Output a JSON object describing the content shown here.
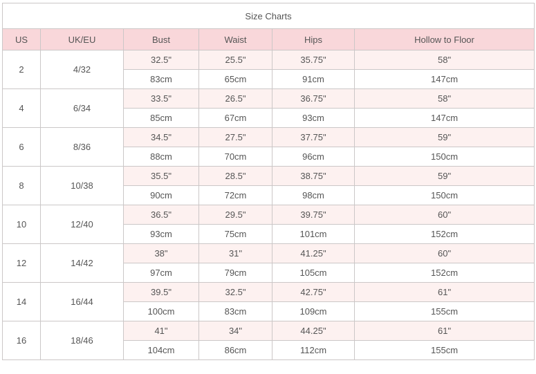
{
  "colors": {
    "header_bg": "#f9d7da",
    "alt_row_bg": "#fdf1f0",
    "border": "#cbc7c7",
    "text": "#555555",
    "header_text": "#4a4a4a",
    "title_text": "#141414"
  },
  "chart_data": {
    "type": "table",
    "title": "Size Charts",
    "columns": [
      "US",
      "UK/EU",
      "Bust",
      "Waist",
      "Hips",
      "Hollow to Floor"
    ],
    "sizes": [
      {
        "us": "2",
        "uk_eu": "4/32",
        "inches": [
          "32.5\"",
          "25.5\"",
          "35.75\"",
          "58\""
        ],
        "cm": [
          "83cm",
          "65cm",
          "91cm",
          "147cm"
        ]
      },
      {
        "us": "4",
        "uk_eu": "6/34",
        "inches": [
          "33.5\"",
          "26.5\"",
          "36.75\"",
          "58\""
        ],
        "cm": [
          "85cm",
          "67cm",
          "93cm",
          "147cm"
        ]
      },
      {
        "us": "6",
        "uk_eu": "8/36",
        "inches": [
          "34.5\"",
          "27.5\"",
          "37.75\"",
          "59\""
        ],
        "cm": [
          "88cm",
          "70cm",
          "96cm",
          "150cm"
        ]
      },
      {
        "us": "8",
        "uk_eu": "10/38",
        "inches": [
          "35.5\"",
          "28.5\"",
          "38.75\"",
          "59\""
        ],
        "cm": [
          "90cm",
          "72cm",
          "98cm",
          "150cm"
        ]
      },
      {
        "us": "10",
        "uk_eu": "12/40",
        "inches": [
          "36.5\"",
          "29.5\"",
          "39.75\"",
          "60\""
        ],
        "cm": [
          "93cm",
          "75cm",
          "101cm",
          "152cm"
        ]
      },
      {
        "us": "12",
        "uk_eu": "14/42",
        "inches": [
          "38\"",
          "31\"",
          "41.25\"",
          "60\""
        ],
        "cm": [
          "97cm",
          "79cm",
          "105cm",
          "152cm"
        ]
      },
      {
        "us": "14",
        "uk_eu": "16/44",
        "inches": [
          "39.5\"",
          "32.5\"",
          "42.75\"",
          "61\""
        ],
        "cm": [
          "100cm",
          "83cm",
          "109cm",
          "155cm"
        ]
      },
      {
        "us": "16",
        "uk_eu": "18/46",
        "inches": [
          "41\"",
          "34\"",
          "44.25\"",
          "61\""
        ],
        "cm": [
          "104cm",
          "86cm",
          "112cm",
          "155cm"
        ]
      }
    ]
  }
}
